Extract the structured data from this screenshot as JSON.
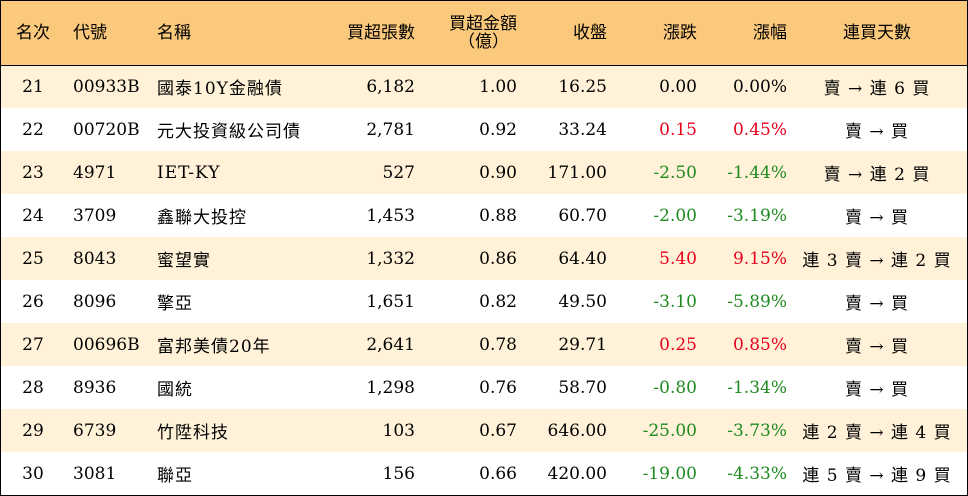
{
  "headers": {
    "rank": "名次",
    "code": "代號",
    "name": "名稱",
    "net_buy_lots": "買超張數",
    "net_buy_amount_line1": "買超金額",
    "net_buy_amount_line2": "（億）",
    "close": "收盤",
    "change": "漲跌",
    "pct_change": "漲幅",
    "days": "連買天數"
  },
  "rows": [
    {
      "rank": "21",
      "code": "00933B",
      "name": "國泰10Y金融債",
      "lots": "6,182",
      "amount": "1.00",
      "close": "16.25",
      "change": "0.00",
      "pct": "0.00%",
      "days": "賣 → 連 6 買",
      "trend": "flat"
    },
    {
      "rank": "22",
      "code": "00720B",
      "name": "元大投資級公司債",
      "lots": "2,781",
      "amount": "0.92",
      "close": "33.24",
      "change": "0.15",
      "pct": "0.45%",
      "days": "賣 → 買",
      "trend": "up"
    },
    {
      "rank": "23",
      "code": "4971",
      "name": "IET-KY",
      "lots": "527",
      "amount": "0.90",
      "close": "171.00",
      "change": "-2.50",
      "pct": "-1.44%",
      "days": "賣 → 連 2 買",
      "trend": "down"
    },
    {
      "rank": "24",
      "code": "3709",
      "name": "鑫聯大投控",
      "lots": "1,453",
      "amount": "0.88",
      "close": "60.70",
      "change": "-2.00",
      "pct": "-3.19%",
      "days": "賣 → 買",
      "trend": "down"
    },
    {
      "rank": "25",
      "code": "8043",
      "name": "蜜望實",
      "lots": "1,332",
      "amount": "0.86",
      "close": "64.40",
      "change": "5.40",
      "pct": "9.15%",
      "days": "連 3 賣 → 連 2 買",
      "trend": "up"
    },
    {
      "rank": "26",
      "code": "8096",
      "name": "擎亞",
      "lots": "1,651",
      "amount": "0.82",
      "close": "49.50",
      "change": "-3.10",
      "pct": "-5.89%",
      "days": "賣 → 買",
      "trend": "down"
    },
    {
      "rank": "27",
      "code": "00696B",
      "name": "富邦美債20年",
      "lots": "2,641",
      "amount": "0.78",
      "close": "29.71",
      "change": "0.25",
      "pct": "0.85%",
      "days": "賣 → 買",
      "trend": "up"
    },
    {
      "rank": "28",
      "code": "8936",
      "name": "國統",
      "lots": "1,298",
      "amount": "0.76",
      "close": "58.70",
      "change": "-0.80",
      "pct": "-1.34%",
      "days": "賣 → 買",
      "trend": "down"
    },
    {
      "rank": "29",
      "code": "6739",
      "name": "竹陞科技",
      "lots": "103",
      "amount": "0.67",
      "close": "646.00",
      "change": "-25.00",
      "pct": "-3.73%",
      "days": "連 2 賣 → 連 4 買",
      "trend": "down"
    },
    {
      "rank": "30",
      "code": "3081",
      "name": "聯亞",
      "lots": "156",
      "amount": "0.66",
      "close": "420.00",
      "change": "-19.00",
      "pct": "-4.33%",
      "days": "連 5 賣 → 連 9 買",
      "trend": "down"
    }
  ],
  "colors": {
    "header_bg": "#fbc97b",
    "row_alt_bg": "#fff2d8",
    "up": "#e8001c",
    "down": "#1f8a1f"
  }
}
